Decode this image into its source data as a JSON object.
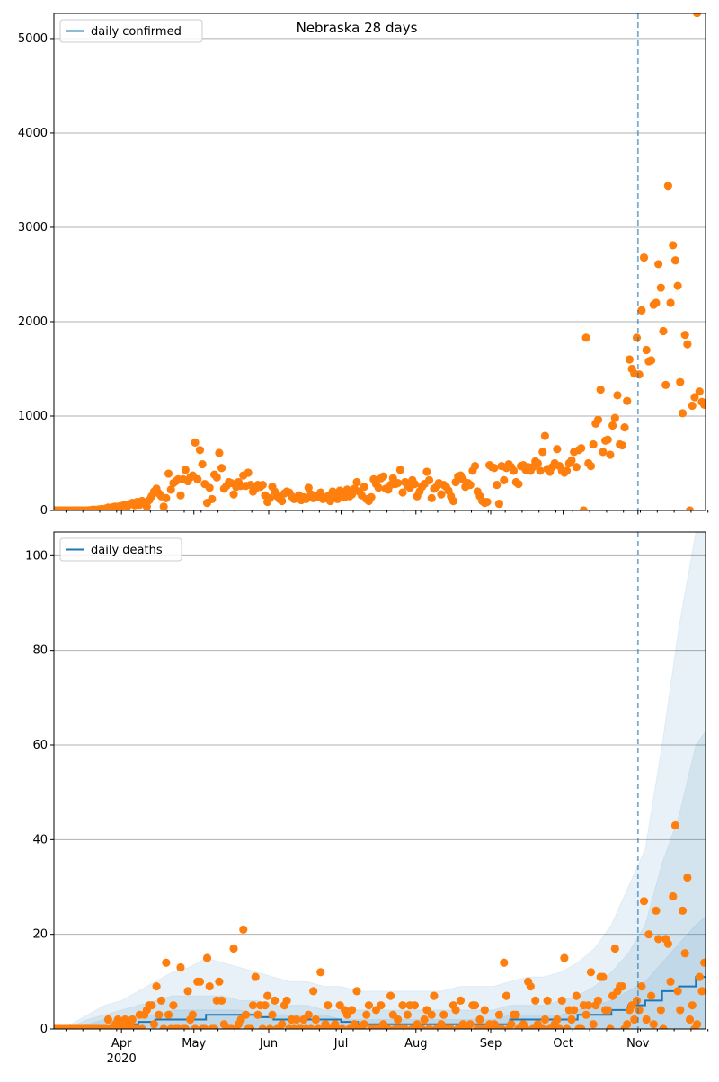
{
  "chart_data": [
    {
      "type": "scatter",
      "title": "Nebraska 28 days",
      "legend": [
        "daily confirmed"
      ],
      "legend_placement": "top-left",
      "x_start_date": "2020-03-04",
      "x_range_days": 270,
      "xlim": [
        "2020-03-04",
        "2020-11-29"
      ],
      "ylim": [
        0,
        5266
      ],
      "yticks": [
        0,
        1000,
        2000,
        3000,
        4000,
        5000
      ],
      "grid": "y",
      "vline_date": "2020-11-01",
      "observed": [
        0,
        0,
        0,
        0,
        0,
        0,
        0,
        0,
        0,
        0,
        0,
        0,
        0,
        0,
        2,
        5,
        8,
        6,
        10,
        15,
        12,
        20,
        30,
        25,
        35,
        40,
        38,
        45,
        50,
        60,
        45,
        70,
        80,
        55,
        90,
        60,
        100,
        85,
        40,
        110,
        150,
        200,
        230,
        180,
        150,
        40,
        130,
        390,
        220,
        290,
        310,
        330,
        160,
        330,
        430,
        310,
        350,
        370,
        720,
        330,
        640,
        490,
        280,
        80,
        240,
        120,
        380,
        350,
        610,
        450,
        230,
        260,
        300,
        290,
        170,
        250,
        300,
        260,
        370,
        260,
        400,
        270,
        200,
        230,
        270,
        250,
        270,
        160,
        90,
        130,
        250,
        200,
        150,
        120,
        100,
        180,
        200,
        190,
        150,
        120,
        130,
        160,
        110,
        140,
        120,
        240,
        170,
        130,
        150,
        140,
        190,
        120,
        130,
        150,
        100,
        200,
        160,
        120,
        210,
        180,
        140,
        220,
        150,
        170,
        230,
        300,
        200,
        160,
        250,
        120,
        100,
        140,
        330,
        280,
        240,
        340,
        360,
        230,
        220,
        270,
        340,
        280,
        290,
        430,
        190,
        300,
        260,
        240,
        320,
        280,
        150,
        200,
        250,
        280,
        410,
        320,
        130,
        230,
        250,
        290,
        170,
        270,
        250,
        210,
        150,
        100,
        300,
        360,
        370,
        330,
        250,
        290,
        270,
        420,
        470,
        200,
        150,
        100,
        80,
        90,
        480,
        460,
        450,
        270,
        70,
        470,
        320,
        450,
        490,
        460,
        420,
        300,
        280,
        470,
        480,
        430,
        460,
        420,
        460,
        520,
        500,
        420,
        620,
        790,
        440,
        410,
        460,
        500,
        650,
        470,
        420,
        400,
        420,
        500,
        530,
        620,
        460,
        640,
        660,
        0,
        1830,
        500,
        470,
        700,
        920,
        960,
        1280,
        620,
        740,
        750,
        590,
        900,
        980,
        1220,
        700,
        690,
        880,
        1160,
        1600,
        1500,
        1450,
        1830,
        1440,
        2120,
        2680,
        1700,
        1580,
        1590,
        2180,
        2200,
        2610,
        2360,
        1900,
        1330,
        3440,
        2200,
        2810,
        2650,
        2380,
        1360,
        1030,
        1860,
        1760,
        0,
        1110,
        1200,
        5270,
        1260,
        1150,
        1120
      ]
    },
    {
      "type": "scatter",
      "legend": [
        "daily deaths"
      ],
      "legend_placement": "top-left",
      "x_start_date": "2020-03-04",
      "x_range_days": 270,
      "ylim": [
        0,
        105
      ],
      "yticks": [
        0,
        20,
        40,
        60,
        80,
        100
      ],
      "grid": "y",
      "vline_date": "2020-11-01",
      "xticks": [
        {
          "label": "Apr",
          "sub": "2020",
          "date": "2020-04-01"
        },
        {
          "label": "May",
          "date": "2020-05-01"
        },
        {
          "label": "Jun",
          "date": "2020-06-01"
        },
        {
          "label": "Jul",
          "date": "2020-07-01"
        },
        {
          "label": "Aug",
          "date": "2020-08-01"
        },
        {
          "label": "Sep",
          "date": "2020-09-01"
        },
        {
          "label": "Oct",
          "date": "2020-10-01"
        },
        {
          "label": "Nov",
          "date": "2020-11-01"
        }
      ],
      "observed": [
        0,
        0,
        0,
        0,
        0,
        0,
        0,
        0,
        0,
        0,
        0,
        0,
        0,
        0,
        0,
        0,
        0,
        0,
        0,
        0,
        0,
        0,
        2,
        0,
        0,
        1,
        2,
        0,
        1,
        2,
        0,
        1,
        2,
        0,
        0,
        3,
        0,
        3,
        4,
        5,
        5,
        1,
        9,
        3,
        6,
        0,
        14,
        3,
        0,
        5,
        0,
        0,
        13,
        0,
        0,
        8,
        2,
        3,
        0,
        10,
        10,
        0,
        0,
        15,
        9,
        0,
        0,
        6,
        10,
        6,
        1,
        0,
        0,
        0,
        17,
        0,
        1,
        2,
        21,
        3,
        0,
        0,
        5,
        11,
        3,
        5,
        0,
        5,
        7,
        0,
        3,
        6,
        0,
        0,
        1,
        5,
        6,
        0,
        2,
        0,
        2,
        0,
        0,
        2,
        0,
        3,
        0,
        8,
        2,
        0,
        12,
        0,
        1,
        5,
        0,
        0,
        1,
        0,
        5,
        0,
        4,
        3,
        0,
        4,
        1,
        8,
        0,
        0,
        1,
        3,
        5,
        0,
        0,
        4,
        0,
        5,
        1,
        0,
        0,
        7,
        3,
        0,
        2,
        0,
        5,
        0,
        3,
        5,
        0,
        5,
        1,
        0,
        0,
        2,
        4,
        0,
        3,
        7,
        0,
        0,
        1,
        3,
        0,
        0,
        0,
        5,
        4,
        0,
        6,
        1,
        0,
        0,
        1,
        5,
        5,
        0,
        2,
        0,
        4,
        0,
        1,
        0,
        1,
        0,
        3,
        0,
        14,
        7,
        0,
        1,
        3,
        3,
        0,
        0,
        1,
        0,
        10,
        9,
        0,
        6,
        1,
        0,
        0,
        2,
        6,
        0,
        0,
        1,
        2,
        0,
        6,
        15,
        0,
        4,
        2,
        4,
        7,
        0,
        0,
        5,
        3,
        5,
        12,
        1,
        5,
        6,
        11,
        11,
        4,
        4,
        0,
        7,
        17,
        8,
        9,
        9,
        0,
        1,
        4,
        5,
        2,
        6,
        4,
        9,
        27,
        2,
        20,
        7,
        1,
        25,
        19,
        4,
        0,
        19,
        18,
        10,
        28,
        43,
        8,
        4,
        25,
        16,
        32,
        2,
        5,
        0,
        1,
        11,
        8,
        14
      ],
      "model_step_days": 7,
      "model_median": [
        0,
        0,
        0,
        0.5,
        1,
        1.5,
        2,
        2,
        2,
        3,
        3,
        3,
        2.5,
        2,
        2,
        2,
        2,
        1.5,
        1,
        1,
        1,
        1,
        1,
        1,
        1,
        1,
        1,
        2,
        2,
        2,
        2,
        3,
        3,
        4,
        5,
        6,
        8,
        9,
        11,
        13
      ],
      "band_outer_upper": [
        0,
        1,
        3,
        5,
        6,
        8,
        10,
        12,
        13,
        15,
        14,
        13,
        12,
        11,
        10,
        10,
        9,
        9,
        8,
        8,
        8,
        8,
        8,
        8,
        9,
        9,
        9,
        10,
        11,
        11,
        12,
        14,
        17,
        22,
        30,
        38,
        60,
        85,
        105,
        115
      ],
      "band_middle_upper": [
        0,
        0.5,
        2,
        3,
        4,
        5,
        6,
        7,
        7,
        7,
        7,
        6,
        6,
        5,
        5,
        5,
        4,
        4,
        4,
        4,
        4,
        4,
        4,
        4,
        4,
        4,
        4,
        5,
        5,
        5,
        6,
        7,
        9,
        12,
        16,
        22,
        35,
        45,
        60,
        65
      ],
      "band_inner_upper": [
        0,
        0.3,
        1,
        2,
        2,
        3,
        3,
        4,
        4,
        4,
        4,
        4,
        3,
        3,
        3,
        3,
        3,
        2,
        2,
        2,
        2,
        2,
        2,
        2,
        2,
        2,
        2,
        3,
        3,
        3,
        3,
        4,
        5,
        6,
        8,
        10,
        14,
        18,
        22,
        25
      ]
    }
  ],
  "colors": {
    "observed": "#ff7f0e",
    "model": "#1f77b4",
    "band": "#1f77b4",
    "grid": "#b0b0b0"
  }
}
